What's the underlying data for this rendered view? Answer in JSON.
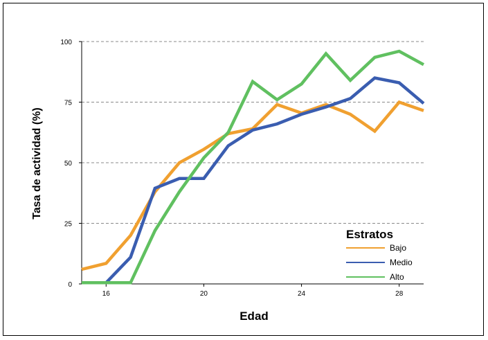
{
  "chart_data": {
    "type": "line",
    "xlabel": "Edad",
    "ylabel": "Tasa de actividad (%)",
    "xlim": [
      15,
      29
    ],
    "ylim": [
      0,
      100
    ],
    "x": [
      15,
      16,
      17,
      18,
      19,
      20,
      21,
      22,
      23,
      24,
      25,
      26,
      27,
      28,
      29
    ],
    "x_ticks": [
      16,
      20,
      24,
      28
    ],
    "y_ticks": [
      0,
      25,
      50,
      75,
      100
    ],
    "grid": "horizontal dashed",
    "legend": {
      "title": "Estratos",
      "position": "bottom-right"
    },
    "series": [
      {
        "name": "Bajo",
        "color": "#F0A030",
        "values": [
          6,
          8.5,
          20,
          38,
          50,
          55.5,
          62,
          64,
          74,
          70.5,
          74,
          70,
          63,
          75,
          71.5
        ]
      },
      {
        "name": "Medio",
        "color": "#3A5DB0",
        "values": [
          0.5,
          0.5,
          11,
          39.5,
          43.5,
          43.5,
          57,
          63.5,
          66,
          70,
          73,
          76.5,
          85,
          83,
          74.5
        ]
      },
      {
        "name": "Alto",
        "color": "#60C060",
        "values": [
          0.5,
          0.5,
          0.5,
          22,
          38,
          52,
          62.5,
          83.5,
          76,
          82.5,
          95,
          84,
          93.5,
          96,
          90.5
        ]
      }
    ]
  }
}
